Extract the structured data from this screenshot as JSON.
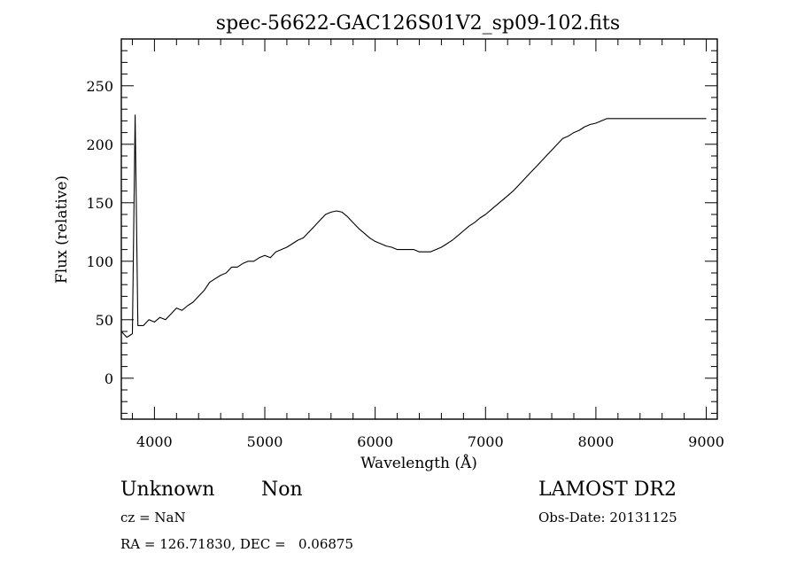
{
  "chart_data": {
    "type": "line",
    "title": "spec-56622-GAC126S01V2_sp09-102.fits",
    "xlabel": "Wavelength (Å)",
    "ylabel": "Flux (relative)",
    "xlim": [
      3700,
      9100
    ],
    "ylim": [
      -35,
      290
    ],
    "x_ticks": [
      {
        "value": 4000,
        "label": "4000"
      },
      {
        "value": 5000,
        "label": "5000"
      },
      {
        "value": 6000,
        "label": "6000"
      },
      {
        "value": 7000,
        "label": "7000"
      },
      {
        "value": 8000,
        "label": "8000"
      },
      {
        "value": 9000,
        "label": "9000"
      }
    ],
    "y_ticks": [
      {
        "value": 0,
        "label": "0"
      },
      {
        "value": 50,
        "label": "50"
      },
      {
        "value": 100,
        "label": "100"
      },
      {
        "value": 150,
        "label": "150"
      },
      {
        "value": 200,
        "label": "200"
      },
      {
        "value": 250,
        "label": "250"
      }
    ],
    "series": [
      {
        "color": "#000000",
        "x": [
          3700,
          3750,
          3800,
          3825,
          3850,
          3900,
          3950,
          4000,
          4050,
          4100,
          4150,
          4200,
          4250,
          4300,
          4350,
          4400,
          4450,
          4500,
          4550,
          4600,
          4650,
          4700,
          4750,
          4800,
          4850,
          4900,
          4950,
          5000,
          5050,
          5100,
          5150,
          5200,
          5250,
          5300,
          5350,
          5400,
          5450,
          5500,
          5550,
          5600,
          5650,
          5700,
          5750,
          5800,
          5850,
          5900,
          5950,
          6000,
          6050,
          6100,
          6150,
          6200,
          6250,
          6300,
          6350,
          6400,
          6450,
          6500,
          6550,
          6600,
          6650,
          6700,
          6750,
          6800,
          6850,
          6900,
          6950,
          7000,
          7050,
          7100,
          7150,
          7200,
          7250,
          7300,
          7350,
          7400,
          7450,
          7500,
          7550,
          7600,
          7650,
          7700,
          7750,
          7800,
          7850,
          7900,
          7950,
          8000,
          8050,
          8100,
          8150,
          8200,
          8250,
          8300,
          8350,
          8400,
          8450,
          8500,
          8550,
          8600,
          8650,
          8700,
          8750,
          8800,
          8850,
          8900,
          8950,
          9000
        ],
        "y": [
          40,
          35,
          38,
          225,
          45,
          45,
          50,
          48,
          52,
          50,
          55,
          60,
          58,
          62,
          65,
          70,
          75,
          82,
          85,
          88,
          90,
          95,
          95,
          98,
          100,
          100,
          103,
          105,
          103,
          108,
          110,
          112,
          115,
          118,
          120,
          125,
          130,
          135,
          140,
          142,
          143,
          142,
          138,
          133,
          128,
          124,
          120,
          117,
          115,
          113,
          112,
          110,
          110,
          110,
          110,
          108,
          108,
          108,
          110,
          112,
          115,
          118,
          122,
          126,
          130,
          133,
          137,
          140,
          144,
          148,
          152,
          156,
          160,
          165,
          170,
          175,
          180,
          185,
          190,
          195,
          200,
          205,
          207,
          210,
          212,
          215,
          217,
          218,
          220,
          222,
          222,
          222,
          222,
          222,
          222,
          222,
          222,
          222,
          222,
          222,
          222,
          222,
          222,
          222,
          222,
          222,
          222,
          222
        ]
      }
    ]
  },
  "info": {
    "classification": "Unknown",
    "subclass": "Non",
    "survey": "LAMOST DR2",
    "cz": "cz = NaN",
    "obs_date": "Obs-Date: 20131125",
    "coords": "RA = 126.71830, DEC =   0.06875"
  }
}
